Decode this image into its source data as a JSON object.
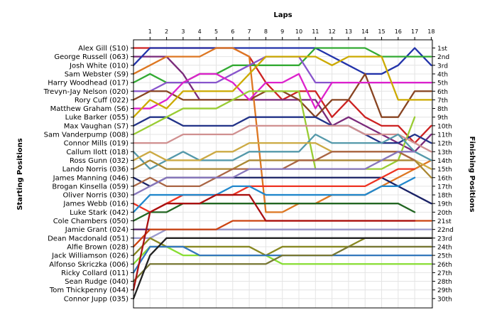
{
  "chart_data": {
    "type": "line",
    "x_title": "Laps",
    "y_left_title": "Starting Positions",
    "y_right_title": "Finishing Positions",
    "laps": [
      1,
      2,
      3,
      4,
      5,
      6,
      7,
      8,
      9,
      10,
      11,
      12,
      13,
      14,
      15,
      16,
      17,
      18
    ],
    "finishing_labels": [
      "1st",
      "2nd",
      "3rd",
      "4th",
      "5th",
      "6th",
      "7th",
      "8th",
      "9th",
      "10th",
      "11th",
      "12th",
      "13th",
      "14th",
      "15th",
      "16th",
      "17th",
      "18th",
      "19th",
      "20th",
      "21st",
      "22nd",
      "23rd",
      "24th",
      "25th",
      "26th",
      "27th",
      "28th",
      "29th",
      "30th"
    ],
    "series": [
      {
        "name": "Alex Gill (S10)",
        "color": "#cc2222",
        "positions": [
          1,
          1,
          1,
          1,
          1,
          1,
          1,
          2,
          5,
          7,
          6,
          6,
          9,
          7,
          9,
          10,
          10,
          12,
          10
        ]
      },
      {
        "name": "George Russell (063)",
        "color": "#7a2a7a",
        "positions": [
          2,
          2,
          2,
          4,
          7,
          7,
          7,
          7,
          7,
          7,
          7,
          7,
          10,
          9,
          10,
          11,
          12,
          13,
          11
        ]
      },
      {
        "name": "Josh White (010)",
        "color": "#2233aa",
        "positions": [
          3,
          1,
          1,
          1,
          1,
          1,
          1,
          1,
          1,
          1,
          1,
          1,
          2,
          3,
          4,
          4,
          3,
          1,
          3
        ]
      },
      {
        "name": "Sam Webster (S9)",
        "color": "#dd7722",
        "positions": [
          4,
          3,
          2,
          2,
          2,
          1,
          1,
          2,
          20,
          20,
          19,
          19,
          18,
          18,
          18,
          17,
          16,
          15,
          14
        ]
      },
      {
        "name": "Harry Woodhead (017)",
        "color": "#33aa33",
        "positions": [
          5,
          4,
          5,
          5,
          4,
          4,
          3,
          3,
          3,
          3,
          3,
          1,
          1,
          1,
          1,
          2,
          2,
          2,
          2
        ]
      },
      {
        "name": "Trevyn-Jay Nelson (020)",
        "color": "#8855cc",
        "positions": [
          6,
          6,
          5,
          5,
          5,
          5,
          4,
          3,
          2,
          2,
          2,
          5,
          5,
          5,
          5,
          5,
          5,
          5,
          5
        ]
      },
      {
        "name": "Rory Cuff (022)",
        "color": "#884422",
        "positions": [
          7,
          6,
          6,
          7,
          7,
          7,
          7,
          7,
          6,
          6,
          7,
          9,
          7,
          7,
          4,
          9,
          9,
          6,
          6
        ]
      },
      {
        "name": "Matthew Graham (S6)",
        "color": "#dd22cc",
        "positions": [
          8,
          8,
          7,
          5,
          4,
          4,
          5,
          7,
          5,
          5,
          4,
          8,
          5,
          5,
          5,
          5,
          5,
          5,
          5
        ]
      },
      {
        "name": "Luke Barker (055)",
        "color": "#ccaa00",
        "positions": [
          9,
          7,
          8,
          6,
          6,
          6,
          6,
          4,
          2,
          2,
          2,
          2,
          3,
          2,
          2,
          2,
          7,
          7,
          7
        ]
      },
      {
        "name": "Max Vaughan (S7)",
        "color": "#223388",
        "positions": [
          10,
          9,
          9,
          10,
          10,
          10,
          10,
          9,
          9,
          9,
          9,
          9,
          10,
          10,
          11,
          12,
          12,
          11,
          12
        ]
      },
      {
        "name": "Sam Vanderpump (008)",
        "color": "#99cc33",
        "positions": [
          11,
          10,
          9,
          8,
          8,
          8,
          7,
          6,
          6,
          6,
          6,
          15,
          15,
          15,
          15,
          15,
          14,
          9
        ]
      },
      {
        "name": "Connor Mills (019)",
        "color": "#d09090",
        "positions": [
          12,
          12,
          12,
          11,
          11,
          11,
          11,
          10,
          10,
          10,
          10,
          10,
          10,
          10,
          11,
          11,
          11,
          12,
          13
        ]
      },
      {
        "name": "Callum Ilott (018)",
        "color": "#5599aa",
        "positions": [
          13,
          15,
          14,
          13,
          14,
          14,
          14,
          13,
          13,
          13,
          13,
          11,
          12,
          12,
          12,
          12,
          11,
          13,
          14
        ]
      },
      {
        "name": "Ross Gunn (032)",
        "color": "#ccaa44",
        "positions": [
          14,
          13,
          14,
          14,
          14,
          13,
          13,
          12,
          12,
          12,
          12,
          12,
          13,
          13,
          13,
          13,
          13,
          14,
          15
        ]
      },
      {
        "name": "Lando Norris (036)",
        "color": "#aa8833",
        "positions": [
          15,
          14,
          15,
          15,
          15,
          15,
          15,
          14,
          14,
          14,
          14,
          14,
          14,
          14,
          14,
          14,
          14,
          14,
          16
        ]
      },
      {
        "name": "James Manning (046)",
        "color": "#1a2266",
        "positions": [
          16,
          17,
          16,
          16,
          16,
          16,
          16,
          16,
          16,
          16,
          16,
          16,
          16,
          16,
          16,
          16,
          17,
          18,
          19
        ]
      },
      {
        "name": "Brogan Kinsella (059)",
        "color": "#aa6644",
        "positions": [
          17,
          16,
          17,
          17,
          17,
          16,
          15,
          15,
          15,
          15,
          14,
          14,
          13,
          13,
          13,
          13,
          13,
          14
        ]
      },
      {
        "name": "Oliver Norris (030)",
        "color": "#8877bb",
        "positions": [
          18,
          17,
          16,
          16,
          16,
          16,
          16,
          15,
          15,
          15,
          15,
          15,
          15,
          15,
          15,
          14,
          13,
          13
        ]
      },
      {
        "name": "James Webb (016)",
        "color": "#ee3322",
        "positions": [
          19,
          20,
          19,
          18,
          18,
          18,
          18,
          17,
          17,
          17,
          17,
          17,
          17,
          17,
          17,
          16,
          15,
          15
        ]
      },
      {
        "name": "Luke Stark (042)",
        "color": "#2288cc",
        "positions": [
          20,
          18,
          18,
          18,
          18,
          18,
          17,
          17,
          18,
          18,
          18,
          18,
          18,
          18,
          18,
          17,
          17,
          16
        ]
      },
      {
        "name": "Cole Chambers (050)",
        "color": "#226622",
        "positions": [
          21,
          20,
          20,
          19,
          19,
          19,
          19,
          19,
          19,
          19,
          19,
          19,
          19,
          19,
          19,
          19,
          19,
          20
        ]
      },
      {
        "name": "Jamie Grant (024)",
        "color": "#552266",
        "positions": [
          22,
          22,
          22,
          22,
          22,
          22,
          22,
          22,
          22,
          22,
          22,
          22,
          22,
          22,
          22,
          22,
          22,
          22
        ]
      },
      {
        "name": "Dean Macdonald (051)",
        "color": "#9999cc",
        "positions": [
          23,
          23,
          22,
          22,
          22,
          22,
          22,
          22,
          22,
          22,
          22,
          22,
          22,
          22,
          22,
          22,
          22,
          22,
          22
        ]
      },
      {
        "name": "Alfie Brown (028)",
        "color": "#cc4411",
        "positions": [
          24,
          22,
          22,
          22,
          22,
          22,
          21,
          21,
          21,
          21,
          21,
          21,
          21,
          21,
          21,
          21,
          21,
          21,
          21
        ]
      },
      {
        "name": "Jack Williamson (026)",
        "color": "#888822",
        "positions": [
          25,
          23,
          24,
          24,
          24,
          24,
          24,
          24,
          25,
          24,
          24,
          24,
          24,
          24,
          23,
          23,
          23,
          23,
          23
        ]
      },
      {
        "name": "Alfonso Skriczka (006)",
        "color": "#88dd33",
        "positions": [
          26,
          24,
          24,
          25,
          25,
          25,
          25,
          25,
          25,
          26,
          26,
          26,
          26,
          26,
          26,
          26,
          26,
          26,
          26
        ]
      },
      {
        "name": "Ricky Collard (011)",
        "color": "#3377bb",
        "positions": [
          27,
          24,
          24,
          24,
          25,
          25,
          25,
          25,
          25,
          25,
          25,
          25,
          25,
          25,
          25,
          25,
          25,
          25,
          25
        ]
      },
      {
        "name": "Sean Rudge (040)",
        "color": "#777733",
        "positions": [
          28,
          26,
          26,
          26,
          26,
          26,
          26,
          26,
          26,
          25,
          25,
          25,
          25,
          24,
          24,
          24,
          24,
          24,
          24
        ]
      },
      {
        "name": "Tom Thickpenny (044)",
        "color": "#aa1111",
        "positions": [
          29,
          20,
          19,
          19,
          19,
          18,
          18,
          18,
          21,
          21,
          21,
          21,
          21,
          21,
          21,
          21,
          21,
          21
        ]
      },
      {
        "name": "Connor Jupp (035)",
        "color": "#222222",
        "positions": [
          30,
          25,
          23,
          23,
          23,
          23,
          23,
          23,
          23,
          23,
          23,
          23,
          23,
          23,
          23,
          23,
          23,
          23,
          23
        ]
      }
    ]
  }
}
